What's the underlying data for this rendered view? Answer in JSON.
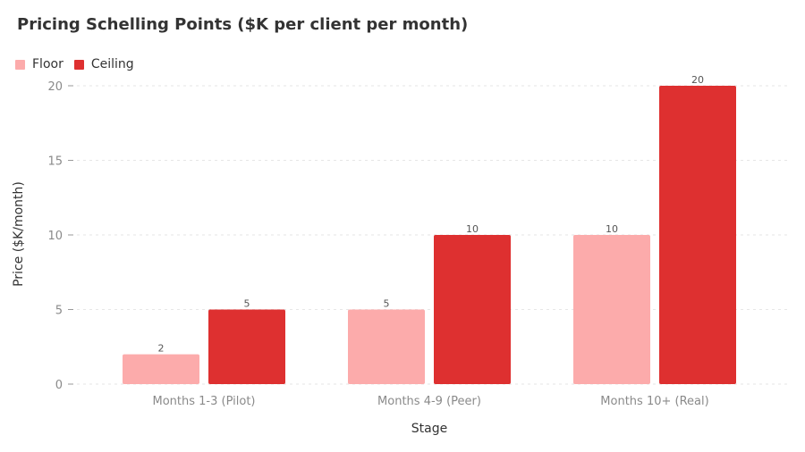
{
  "chart_data": {
    "type": "bar",
    "title": "Pricing Schelling Points ($K per client per month)",
    "xlabel": "Stage",
    "ylabel": "Price ($K/month)",
    "categories": [
      "Months 1-3 (Pilot)",
      "Months 4-9 (Peer)",
      "Months 10+ (Real)"
    ],
    "series": [
      {
        "name": "Floor",
        "values": [
          2,
          5,
          10
        ],
        "color": "#fcabab"
      },
      {
        "name": "Ceiling",
        "values": [
          5,
          10,
          20
        ],
        "color": "#de3030"
      }
    ],
    "ylim": [
      0,
      20
    ],
    "yticks": [
      0,
      5,
      10,
      15,
      20
    ],
    "grid": true,
    "legend": "top-left"
  }
}
